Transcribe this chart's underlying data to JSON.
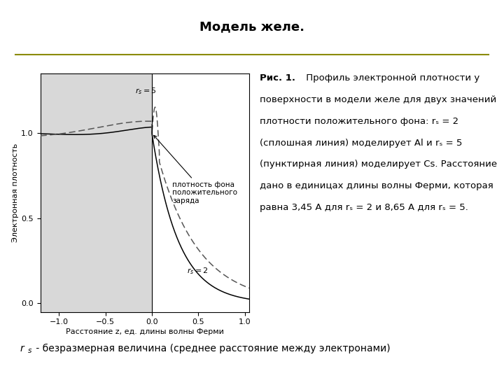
{
  "title": "Модель желе.",
  "title_fontsize": 13,
  "title_fontweight": "bold",
  "ylabel": "Электронная плотность",
  "xlabel": "Расстояние z, ед. длины волны Ферми",
  "xlim": [
    -1.2,
    1.05
  ],
  "ylim": [
    -0.05,
    1.35
  ],
  "yticks": [
    0,
    0.5,
    1.0
  ],
  "xticks": [
    -1.0,
    -0.5,
    0,
    0.5,
    1.0
  ],
  "background_color": "#ffffff",
  "plot_bg_color": "#d8d8d8",
  "separator_line_color": "#8B8B00",
  "fig_width": 7.2,
  "fig_height": 5.4,
  "annotation_text": "плотность фона\nположительного\nзаряда",
  "cap_lines": [
    "Рис. 1. Профиль электронной плотности у",
    "поверхности в модели желе для двух значений",
    "плотности положительного фона: r_s = 2",
    "(сплошная линия) моделирует Al и r_s = 5",
    "(пунктирная линия) моделирует Cs. Расстояние",
    "дано в единицах длины волны Ферми, которая",
    "равна 3,45 А для r_s = 2 и 8,65 А для r_s = 5."
  ],
  "footer_italic": "r",
  "footer_sub": "s",
  "footer_rest": " - безразмерная величина (среднее расстояние между электронами)"
}
